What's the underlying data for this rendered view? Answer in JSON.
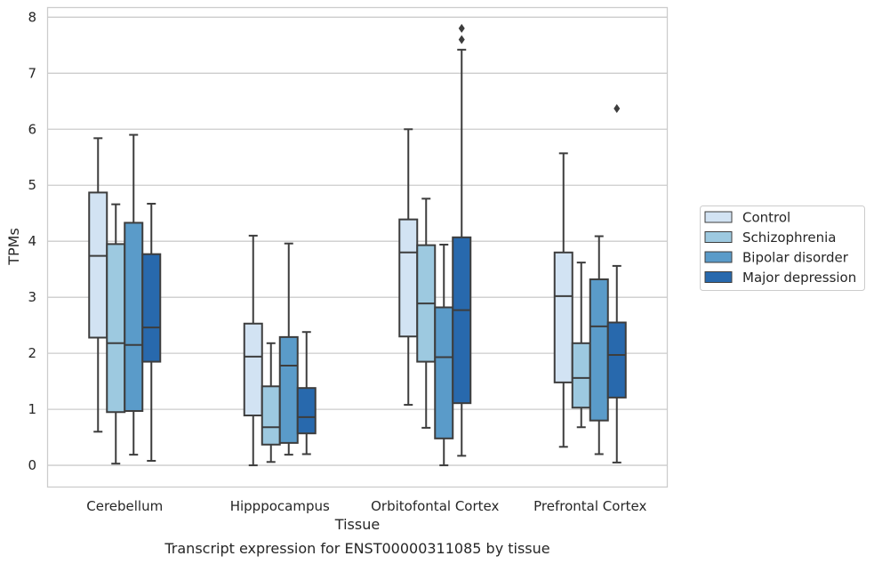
{
  "chart_data": {
    "type": "box",
    "caption": "Transcript expression for ENST00000311085 by tissue",
    "xlabel": "Tissue",
    "ylabel": "TPMs",
    "ylim": [
      -0.38,
      8.18
    ],
    "yticks": [
      0,
      1,
      2,
      3,
      4,
      5,
      6,
      7,
      8
    ],
    "grid": true,
    "legend_position": "right",
    "categories": [
      "Cerebellum",
      "Hipppocampus",
      "Orbitofontal Cortex",
      "Prefrontal Cortex"
    ],
    "series": [
      {
        "name": "Control",
        "color": "#d2e3f3",
        "boxes": [
          {
            "whislo": 0.6,
            "q1": 2.28,
            "med": 3.74,
            "q3": 4.87,
            "whishi": 5.84,
            "fliers": []
          },
          {
            "whislo": 0.0,
            "q1": 0.89,
            "med": 1.94,
            "q3": 2.53,
            "whishi": 4.1,
            "fliers": []
          },
          {
            "whislo": 1.08,
            "q1": 2.3,
            "med": 3.8,
            "q3": 4.39,
            "whishi": 6.0,
            "fliers": []
          },
          {
            "whislo": 0.33,
            "q1": 1.48,
            "med": 3.02,
            "q3": 3.8,
            "whishi": 5.57,
            "fliers": []
          }
        ]
      },
      {
        "name": "Schizophrenia",
        "color": "#9dc9e0",
        "boxes": [
          {
            "whislo": 0.03,
            "q1": 0.95,
            "med": 2.18,
            "q3": 3.95,
            "whishi": 4.66,
            "fliers": []
          },
          {
            "whislo": 0.06,
            "q1": 0.37,
            "med": 0.68,
            "q3": 1.41,
            "whishi": 2.18,
            "fliers": []
          },
          {
            "whislo": 0.67,
            "q1": 1.85,
            "med": 2.89,
            "q3": 3.93,
            "whishi": 4.76,
            "fliers": []
          },
          {
            "whislo": 0.68,
            "q1": 1.03,
            "med": 1.56,
            "q3": 2.18,
            "whishi": 3.62,
            "fliers": []
          }
        ]
      },
      {
        "name": "Bipolar disorder",
        "color": "#5a9bc9",
        "boxes": [
          {
            "whislo": 0.19,
            "q1": 0.97,
            "med": 2.15,
            "q3": 4.33,
            "whishi": 5.9,
            "fliers": []
          },
          {
            "whislo": 0.19,
            "q1": 0.4,
            "med": 1.78,
            "q3": 2.29,
            "whishi": 3.96,
            "fliers": []
          },
          {
            "whislo": 0.0,
            "q1": 0.48,
            "med": 1.93,
            "q3": 2.82,
            "whishi": 3.94,
            "fliers": []
          },
          {
            "whislo": 0.2,
            "q1": 0.8,
            "med": 2.48,
            "q3": 3.32,
            "whishi": 4.09,
            "fliers": []
          }
        ]
      },
      {
        "name": "Major depression",
        "color": "#2869ad",
        "boxes": [
          {
            "whislo": 0.08,
            "q1": 1.85,
            "med": 2.46,
            "q3": 3.77,
            "whishi": 4.67,
            "fliers": []
          },
          {
            "whislo": 0.2,
            "q1": 0.57,
            "med": 0.86,
            "q3": 1.38,
            "whishi": 2.38,
            "fliers": []
          },
          {
            "whislo": 0.17,
            "q1": 1.11,
            "med": 2.77,
            "q3": 4.07,
            "whishi": 7.42,
            "fliers": [
              7.6,
              7.8
            ]
          },
          {
            "whislo": 0.05,
            "q1": 1.21,
            "med": 1.97,
            "q3": 2.55,
            "whishi": 3.56,
            "fliers": [
              6.37
            ]
          }
        ]
      }
    ]
  }
}
